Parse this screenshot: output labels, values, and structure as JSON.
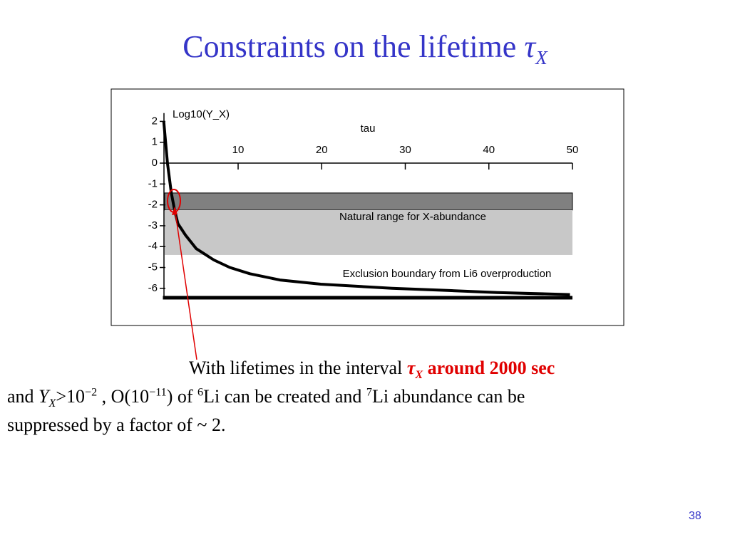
{
  "slide": {
    "title": [
      "Constraints on the lifetime ",
      "τ",
      "X"
    ],
    "body": [
      [
        "With lifetimes in the interval ",
        "τ",
        "X",
        " around 2000 sec"
      ],
      [
        "and ",
        "Y",
        "X",
        ">10",
        "−2",
        " , O(10",
        "−11",
        ") of ",
        "6",
        "Li can be created and ",
        "7",
        "Li abundance can be"
      ],
      [
        "suppressed by a factor of ~ 2."
      ]
    ],
    "page_number": "38"
  },
  "chart_data": {
    "type": "line",
    "y_label": "Log10(Y_X)",
    "x_label": "tau",
    "x": [
      1.1,
      1.55,
      2,
      2.4,
      2.8,
      3.7,
      5,
      7.1,
      9,
      11.4,
      15,
      19.9,
      28.4,
      35,
      41,
      49.7
    ],
    "values": [
      2,
      0,
      -1.4,
      -2.25,
      -2.9,
      -3.45,
      -4.1,
      -4.64,
      -5.0,
      -5.3,
      -5.6,
      -5.8,
      -6.0,
      -6.1,
      -6.2,
      -6.3
    ],
    "color": "#000000",
    "xlim": [
      1,
      50
    ],
    "xticks": [
      10,
      20,
      30,
      40,
      50
    ],
    "ylim": [
      -6.5,
      2.4
    ],
    "yticks": [
      2,
      1,
      0,
      -1,
      -2,
      -3,
      -4,
      -5,
      -6
    ],
    "bands": [
      {
        "range": [
          -1.43,
          -2.25
        ],
        "color": "#808080"
      },
      {
        "range": [
          -2.25,
          -4.4
        ],
        "color": "#c8c8c8",
        "label": "Natural range for X-abundance"
      }
    ],
    "annotation": "Exclusion boundary from Li6 overproduction"
  }
}
